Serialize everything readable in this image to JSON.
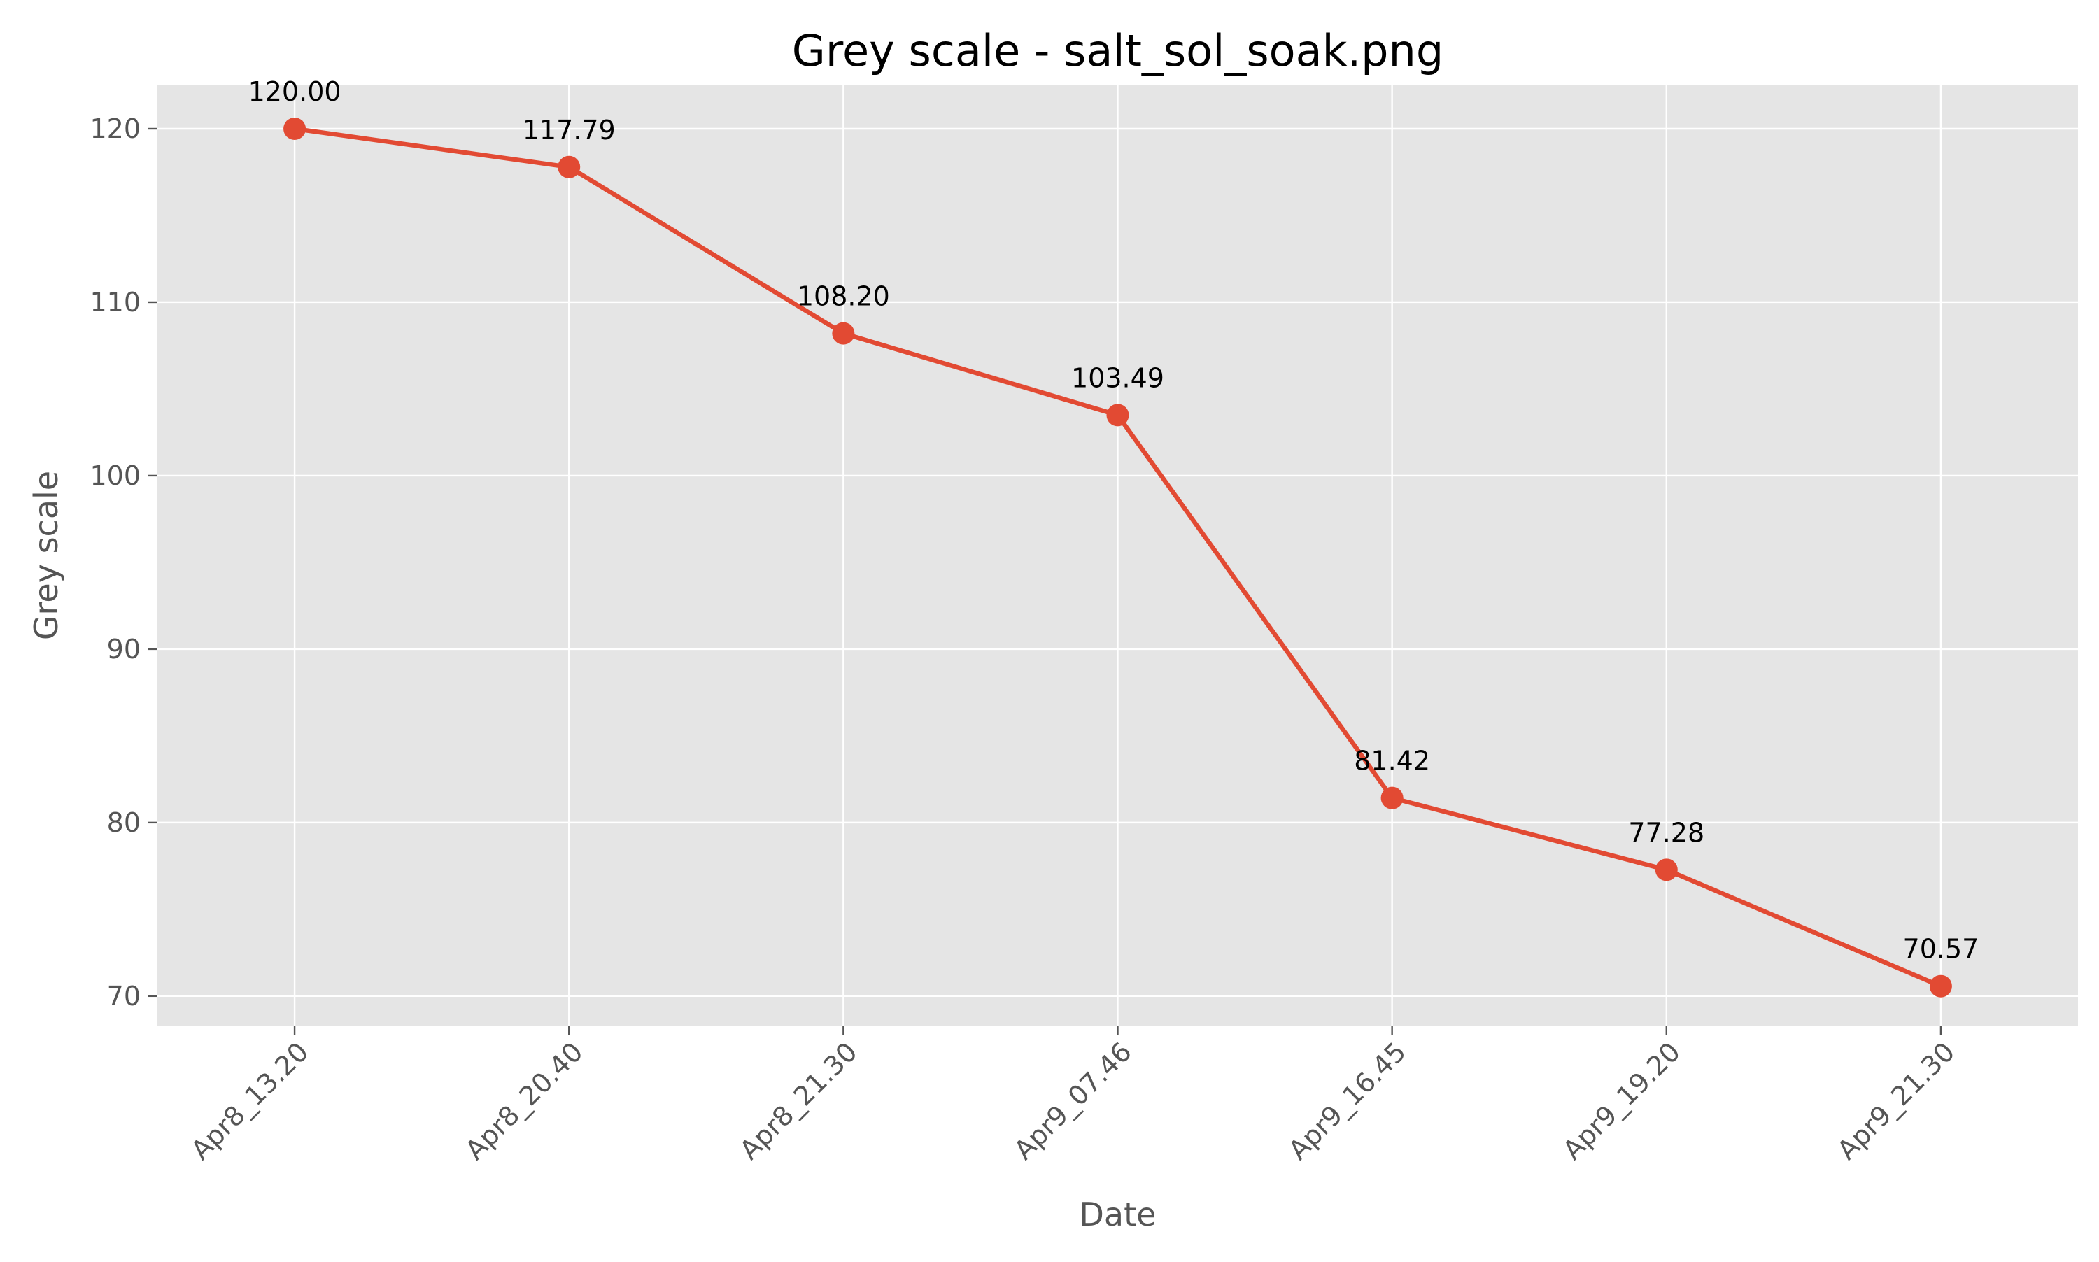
{
  "chart_data": {
    "type": "line",
    "title": "Grey scale - salt_sol_soak.png",
    "xlabel": "Date",
    "ylabel": "Grey scale",
    "categories": [
      "Apr8_13.20",
      "Apr8_20.40",
      "Apr8_21.30",
      "Apr9_07.46",
      "Apr9_16.45",
      "Apr9_19.20",
      "Apr9_21.30"
    ],
    "series": [
      {
        "values": [
          120.0,
          117.79,
          108.2,
          103.49,
          81.42,
          77.28,
          70.57
        ],
        "data_labels": [
          "120.00",
          "117.79",
          "108.20",
          "103.49",
          "81.42",
          "77.28",
          "70.57"
        ],
        "color": "#e24a33"
      }
    ],
    "yticks": [
      70,
      80,
      90,
      100,
      110,
      120
    ],
    "ytick_labels": [
      "70",
      "80",
      "90",
      "100",
      "110",
      "120"
    ],
    "ylim": [
      68.3,
      122.5
    ],
    "grid": true,
    "style": "ggplot",
    "colors": {
      "plot_background": "#e5e5e5",
      "grid": "#ffffff",
      "line": "#e24a33"
    }
  }
}
